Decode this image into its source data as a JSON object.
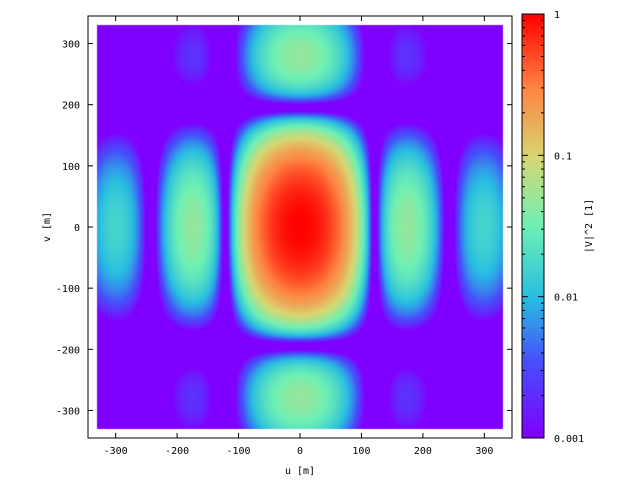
{
  "chart_data": {
    "type": "heatmap",
    "title": "",
    "xlabel": "u [m]",
    "ylabel": "v [m]",
    "colorbar_label": "|V|^2 [1]",
    "xlim": [
      -345,
      345
    ],
    "ylim": [
      -345,
      345
    ],
    "data_extent": {
      "u": [
        -330,
        330
      ],
      "v": [
        -330,
        330
      ]
    },
    "x_ticks": [
      -300,
      -200,
      -100,
      0,
      100,
      200,
      300
    ],
    "y_ticks": [
      -300,
      -200,
      -100,
      0,
      100,
      200,
      300
    ],
    "x_tick_labels": [
      "-300",
      "-200",
      "-100",
      "0",
      "100",
      "200",
      "300"
    ],
    "y_tick_labels": [
      "-300",
      "-200",
      "-100",
      "0",
      "100",
      "200",
      "300"
    ],
    "colorbar": {
      "scale": "log",
      "range": [
        0.001,
        1
      ],
      "ticks": [
        0.001,
        0.01,
        0.1,
        1
      ],
      "tick_labels": [
        "0.001",
        "0.01",
        "0.1",
        "1"
      ],
      "colormap": "rainbow"
    },
    "grid": false,
    "legend": "none",
    "pattern": {
      "description_of_structure_only": "visibility |V|^2 of a rectangular aperture",
      "zero_u_spacing": 121.5,
      "zero_v_spacing": 195,
      "peak_value": 1
    }
  }
}
